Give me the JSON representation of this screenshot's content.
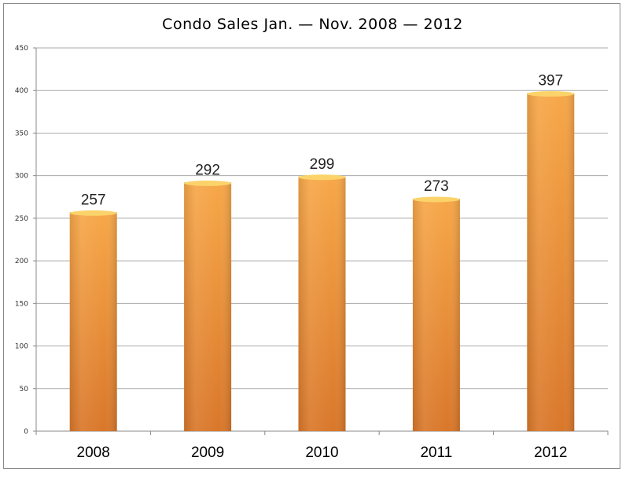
{
  "chart_data": {
    "type": "bar",
    "title": "Condo Sales Jan. — Nov. 2008 — 2012",
    "categories": [
      "2008",
      "2009",
      "2010",
      "2011",
      "2012"
    ],
    "values": [
      257,
      292,
      299,
      273,
      397
    ],
    "data_labels": [
      "257",
      "292",
      "299",
      "273",
      "397"
    ],
    "ylim": [
      0,
      450
    ],
    "yticks": [
      "0",
      "50",
      "100",
      "150",
      "200",
      "250",
      "300",
      "350",
      "400",
      "450"
    ],
    "xlabel": "",
    "ylabel": "",
    "grid": true,
    "legend": "none",
    "colors": {
      "bar_light": "#f7a748",
      "bar_dark": "#d9772a",
      "bar_top": "#fbd36a",
      "grid": "#aaaaaa"
    }
  }
}
